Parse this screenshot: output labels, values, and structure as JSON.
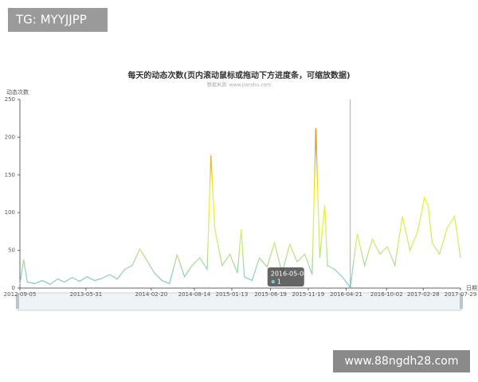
{
  "watermark_top": "TG: MYYJJPP",
  "watermark_bottom": "www.88ngdh28.com",
  "chart_data": {
    "type": "line",
    "title": "每天的动态次数(页内滚动鼠标或拖动下方进度条，可缩放数据)",
    "subtitle": "数据来源: www.jianshu.com",
    "y_label": "动态次数",
    "x_label": "日期",
    "colors": [
      "#7ec6dd",
      "#d4ee6a",
      "#f5f020",
      "#e0a020",
      "#d9732a"
    ],
    "ylim": [
      0,
      250
    ],
    "yticks": [
      0,
      50,
      100,
      150,
      200,
      250
    ],
    "xlim": [
      "2012-09-05",
      "2017-07-29"
    ],
    "xticks": [
      "2012-09-05",
      "2013-05-31",
      "2014-02-20",
      "2014-08-14",
      "2015-01-13",
      "2015-06-19",
      "2015-11-19",
      "2016-04-21",
      "2016-10-02",
      "2017-02-28",
      "2017-07-29"
    ],
    "x": [
      "2012-09-05",
      "2012-09-20",
      "2012-10-05",
      "2012-11-05",
      "2012-12-05",
      "2013-01-05",
      "2013-02-05",
      "2013-03-05",
      "2013-04-05",
      "2013-05-05",
      "2013-06-05",
      "2013-07-05",
      "2013-08-05",
      "2013-09-05",
      "2013-10-05",
      "2013-11-05",
      "2013-12-05",
      "2014-01-05",
      "2014-02-05",
      "2014-03-05",
      "2014-04-05",
      "2014-05-05",
      "2014-06-05",
      "2014-07-05",
      "2014-08-05",
      "2014-09-05",
      "2014-10-05",
      "2014-10-20",
      "2014-11-05",
      "2014-12-05",
      "2015-01-05",
      "2015-02-05",
      "2015-02-20",
      "2015-03-05",
      "2015-04-05",
      "2015-05-05",
      "2015-06-05",
      "2015-07-05",
      "2015-08-05",
      "2015-09-05",
      "2015-10-05",
      "2015-11-05",
      "2015-12-05",
      "2015-12-20",
      "2016-01-05",
      "2016-01-25",
      "2016-02-05",
      "2016-03-05",
      "2016-04-05",
      "2016-05-08",
      "2016-06-05",
      "2016-07-05",
      "2016-08-05",
      "2016-09-05",
      "2016-10-05",
      "2016-11-05",
      "2016-12-05",
      "2017-01-05",
      "2017-02-05",
      "2017-03-05",
      "2017-03-20",
      "2017-04-05",
      "2017-05-05",
      "2017-06-05",
      "2017-07-05",
      "2017-07-29"
    ],
    "values": [
      5,
      38,
      8,
      6,
      10,
      5,
      12,
      8,
      14,
      9,
      15,
      10,
      13,
      18,
      12,
      25,
      30,
      52,
      35,
      20,
      10,
      6,
      44,
      15,
      30,
      40,
      25,
      176,
      78,
      30,
      45,
      20,
      78,
      15,
      10,
      40,
      28,
      60,
      20,
      58,
      35,
      45,
      18,
      212,
      40,
      110,
      30,
      25,
      15,
      1,
      72,
      30,
      65,
      45,
      55,
      30,
      95,
      50,
      75,
      120,
      108,
      60,
      45,
      80,
      95,
      40
    ],
    "tooltip": {
      "date": "2016-05-08",
      "value": "1"
    }
  }
}
